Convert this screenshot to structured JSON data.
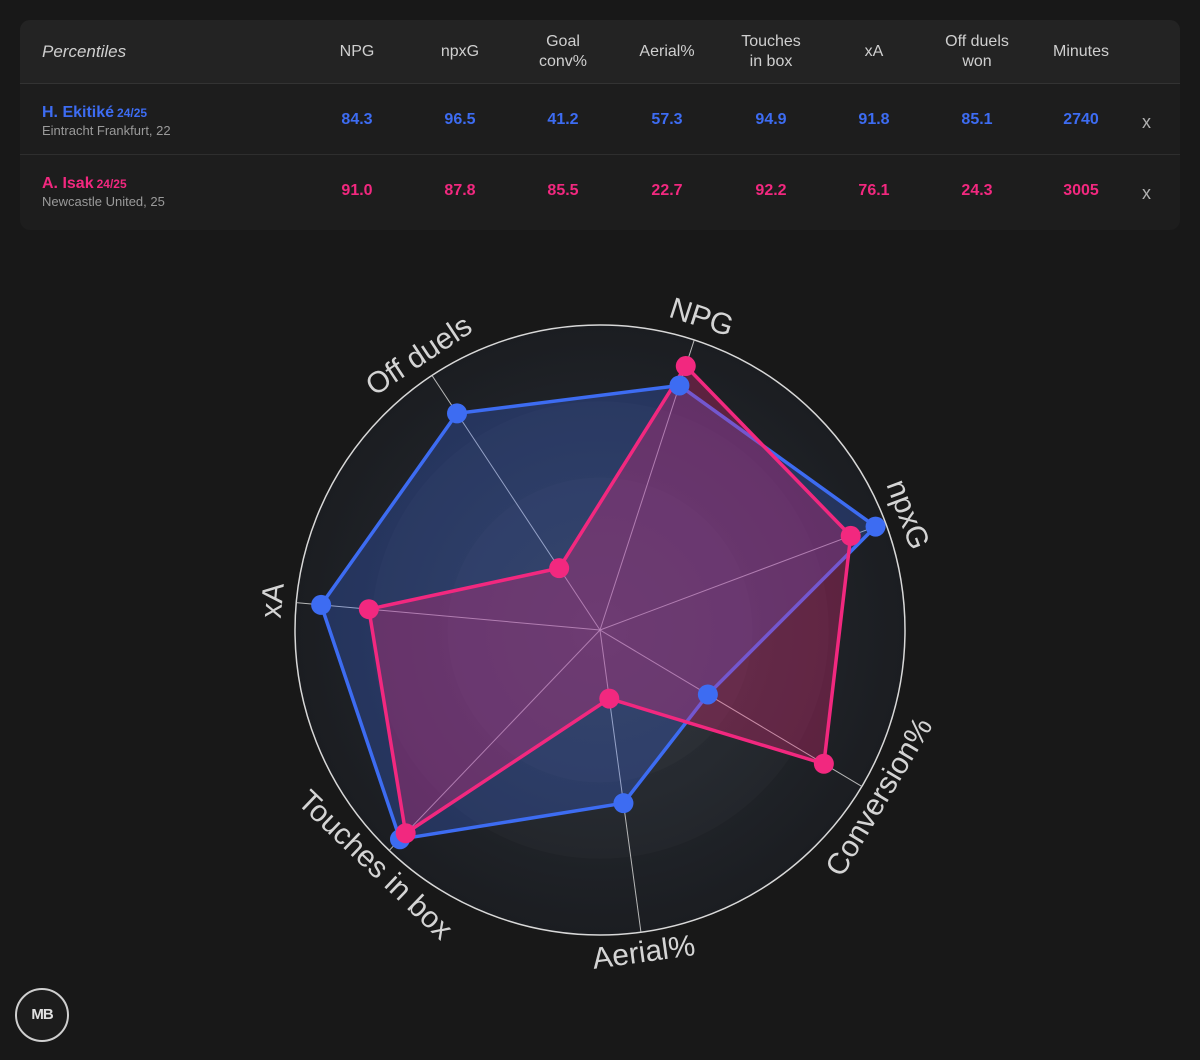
{
  "table": {
    "title": "Percentiles",
    "columns": [
      [
        "NPG"
      ],
      [
        "npxG"
      ],
      [
        "Goal",
        "conv%"
      ],
      [
        "Aerial%"
      ],
      [
        "Touches",
        "in box"
      ],
      [
        "xA"
      ],
      [
        "Off duels",
        "won"
      ],
      [
        "Minutes"
      ]
    ],
    "remove_label": "x",
    "players": [
      {
        "name": "H. Ekitiké",
        "season": "24/25",
        "club": "Eintracht Frankfurt, 22",
        "values": [
          "84.3",
          "96.5",
          "41.2",
          "57.3",
          "94.9",
          "91.8",
          "85.1",
          "2740"
        ]
      },
      {
        "name": "A. Isak",
        "season": "24/25",
        "club": "Newcastle United,  25",
        "values": [
          "91.0",
          "87.8",
          "85.5",
          "22.7",
          "92.2",
          "76.1",
          "24.3",
          "3005"
        ]
      }
    ]
  },
  "chart_data": {
    "type": "radar",
    "axes": [
      "NPG",
      "npxG",
      "Conversion%",
      "Aerial%",
      "Touches in box",
      "xA",
      "Off duels"
    ],
    "range": [
      0,
      100
    ],
    "series": [
      {
        "name": "H. Ekitiké",
        "color": "#3d6cf2",
        "values": [
          84.3,
          96.5,
          41.2,
          57.3,
          94.9,
          91.8,
          85.1
        ]
      },
      {
        "name": "A. Isak",
        "color": "#f2287f",
        "values": [
          91.0,
          87.8,
          85.5,
          22.7,
          92.2,
          76.1,
          24.3
        ]
      }
    ]
  },
  "logo": {
    "text": "MB"
  },
  "colors": {
    "background": "#181818",
    "blue": "#3d6cf2",
    "pink": "#f2287f"
  }
}
